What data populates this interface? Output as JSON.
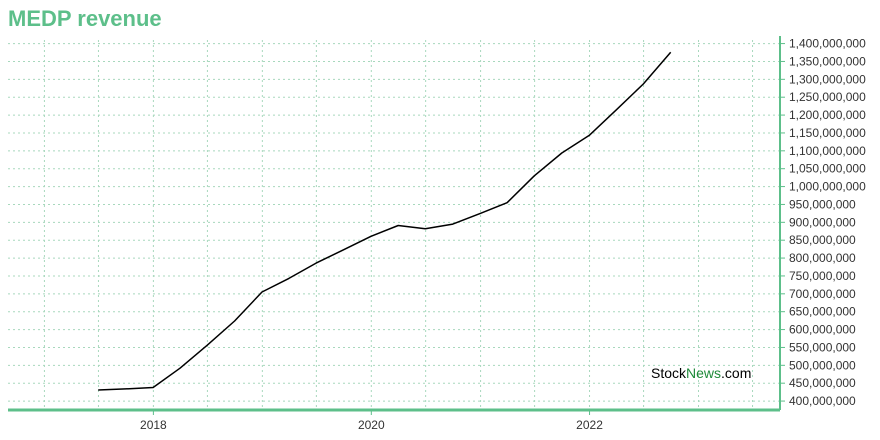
{
  "title": "MEDP revenue",
  "watermark": {
    "part1": "Stock",
    "part2": "News",
    "part3": ".com"
  },
  "colors": {
    "accent": "#5dbf8a",
    "line": "#000000",
    "grid": "#a8d8bd",
    "watermark_green": "#1f8a3a"
  },
  "chart_data": {
    "type": "line",
    "title": "MEDP revenue",
    "xlabel": "",
    "ylabel": "",
    "x_ticks": [
      "2018",
      "2020",
      "2022"
    ],
    "y_ticks": [
      400000000,
      450000000,
      500000000,
      550000000,
      600000000,
      650000000,
      700000000,
      750000000,
      800000000,
      850000000,
      900000000,
      950000000,
      1000000000,
      1050000000,
      1100000000,
      1150000000,
      1200000000,
      1250000000,
      1300000000,
      1350000000,
      1400000000
    ],
    "y_tick_labels": [
      "400,000,000",
      "450,000,000",
      "500,000,000",
      "550,000,000",
      "600,000,000",
      "650,000,000",
      "700,000,000",
      "750,000,000",
      "800,000,000",
      "850,000,000",
      "900,000,000",
      "950,000,000",
      "1,000,000,000",
      "1,050,000,000",
      "1,100,000,000",
      "1,150,000,000",
      "1,200,000,000",
      "1,250,000,000",
      "1,300,000,000",
      "1,350,000,000",
      "1,400,000,000"
    ],
    "xlim": [
      "2016-09-01",
      "2023-10-01"
    ],
    "ylim": [
      375000000,
      1410000000
    ],
    "axis_side": "right",
    "grid": true,
    "series": [
      {
        "points": [
          [
            "2017-06-30",
            431000000
          ],
          [
            "2017-09-30",
            434000000
          ],
          [
            "2017-12-31",
            438000000
          ],
          [
            "2018-03-31",
            492000000
          ],
          [
            "2018-06-30",
            556000000
          ],
          [
            "2018-09-30",
            624000000
          ],
          [
            "2018-12-31",
            705000000
          ],
          [
            "2019-03-31",
            743000000
          ],
          [
            "2019-06-30",
            786000000
          ],
          [
            "2019-09-30",
            823000000
          ],
          [
            "2019-12-31",
            861000000
          ],
          [
            "2020-03-31",
            891000000
          ],
          [
            "2020-06-30",
            882000000
          ],
          [
            "2020-09-30",
            895000000
          ],
          [
            "2020-12-31",
            925000000
          ],
          [
            "2021-03-31",
            955000000
          ],
          [
            "2021-06-30",
            1030000000
          ],
          [
            "2021-09-30",
            1094000000
          ],
          [
            "2021-12-31",
            1143000000
          ],
          [
            "2022-03-31",
            1214000000
          ],
          [
            "2022-06-30",
            1287000000
          ],
          [
            "2022-09-30",
            1376000000
          ]
        ]
      }
    ]
  }
}
